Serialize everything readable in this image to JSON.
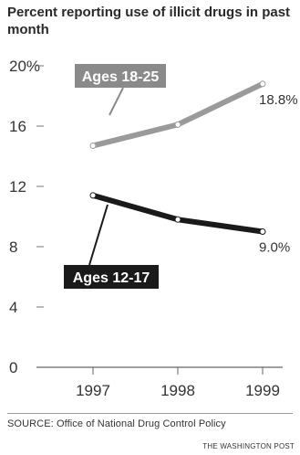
{
  "chart_data": {
    "type": "line",
    "title": "Percent reporting use of illicit drugs in past month",
    "x": [
      "1997",
      "1998",
      "1999"
    ],
    "ylim": [
      0,
      20
    ],
    "yticks": [
      "0",
      "4",
      "8",
      "12",
      "16",
      "20%"
    ],
    "grid": false,
    "series": [
      {
        "name": "Ages 18-25",
        "values": [
          14.7,
          16.1,
          18.8
        ],
        "end_label": "18.8%",
        "color": "#9a9a9a",
        "box_color": "#8a8a8a"
      },
      {
        "name": "Ages 12-17",
        "values": [
          11.4,
          9.8,
          9.0
        ],
        "end_label": "9.0%",
        "color": "#1a1a1a",
        "box_color": "#1a1a1a"
      }
    ]
  },
  "source": "SOURCE: Office of National Drug Control Policy",
  "credit": "THE WASHINGTON POST"
}
